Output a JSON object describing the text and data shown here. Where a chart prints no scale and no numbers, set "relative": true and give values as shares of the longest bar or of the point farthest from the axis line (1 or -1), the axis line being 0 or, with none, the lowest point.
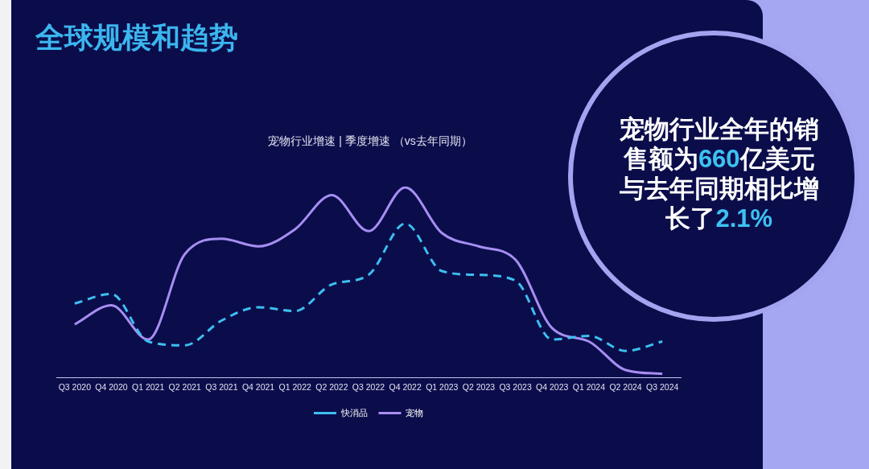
{
  "chart_data": {
    "type": "line",
    "title": "全球规模和趋势",
    "subtitle": "宠物行业增速 | 季度增速 （vs去年同期）",
    "annotations": [
      "宠物行业全年的销售额为660亿美元与去年同期相比增长了2.1%"
    ],
    "categories": [
      "Q3 2020",
      "Q4 2020",
      "Q1 2021",
      "Q2 2021",
      "Q3 2021",
      "Q4 2021",
      "Q1 2022",
      "Q2 2022",
      "Q3 2022",
      "Q4 2022",
      "Q1 2023",
      "Q2 2023",
      "Q3 2023",
      "Q4 2023",
      "Q1 2024",
      "Q2 2024",
      "Q3 2024"
    ],
    "relative": true,
    "legend": "bottom",
    "marker": "none",
    "series": [
      {
        "name": "快消品",
        "color": "#3dbff0",
        "line_style": "dashed",
        "values": [
          0.39,
          0.44,
          0.19,
          0.17,
          0.3,
          0.37,
          0.35,
          0.49,
          0.54,
          0.81,
          0.56,
          0.54,
          0.51,
          0.2,
          0.22,
          0.14,
          0.19
        ]
      },
      {
        "name": "宠物",
        "color": "#a78ef2",
        "line_style": "solid",
        "values": [
          0.28,
          0.38,
          0.2,
          0.65,
          0.73,
          0.69,
          0.78,
          0.96,
          0.77,
          1.0,
          0.76,
          0.69,
          0.62,
          0.26,
          0.19,
          0.04,
          0.02
        ]
      }
    ]
  }
}
